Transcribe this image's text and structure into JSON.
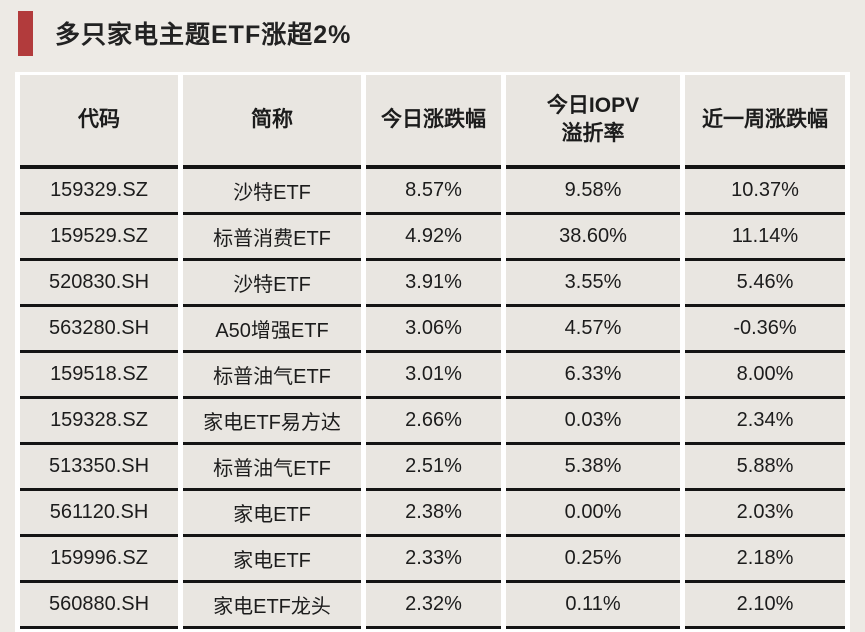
{
  "title": {
    "text": "多只家电主题ETF涨超2%"
  },
  "colors": {
    "accent_red": "#b23b3c",
    "page_background": "#edeae5",
    "cell_background": "#e9e6e1",
    "row_border": "#141414",
    "gap_white": "#ffffff",
    "text": "#1c1c1c"
  },
  "chart_data": {
    "type": "table",
    "title": "多只家电主题ETF涨超2%",
    "columns": [
      {
        "key": "code",
        "label": "代码"
      },
      {
        "key": "name",
        "label": "简称"
      },
      {
        "key": "today-change",
        "label": "今日涨跌幅"
      },
      {
        "key": "iopv-premium",
        "label": "今日IOPV\n溢折率"
      },
      {
        "key": "week-change",
        "label": "近一周涨跌幅"
      }
    ],
    "rows": [
      [
        "159329.SZ",
        "沙特ETF",
        "8.57%",
        "9.58%",
        "10.37%"
      ],
      [
        "159529.SZ",
        "标普消费ETF",
        "4.92%",
        "38.60%",
        "11.14%"
      ],
      [
        "520830.SH",
        "沙特ETF",
        "3.91%",
        "3.55%",
        "5.46%"
      ],
      [
        "563280.SH",
        "A50增强ETF",
        "3.06%",
        "4.57%",
        "-0.36%"
      ],
      [
        "159518.SZ",
        "标普油气ETF",
        "3.01%",
        "6.33%",
        "8.00%"
      ],
      [
        "159328.SZ",
        "家电ETF易方达",
        "2.66%",
        "0.03%",
        "2.34%"
      ],
      [
        "513350.SH",
        "标普油气ETF",
        "2.51%",
        "5.38%",
        "5.88%"
      ],
      [
        "561120.SH",
        "家电ETF",
        "2.38%",
        "0.00%",
        "2.03%"
      ],
      [
        "159996.SZ",
        "家电ETF",
        "2.33%",
        "0.25%",
        "2.18%"
      ],
      [
        "560880.SH",
        "家电ETF龙头",
        "2.32%",
        "0.11%",
        "2.10%"
      ]
    ]
  }
}
